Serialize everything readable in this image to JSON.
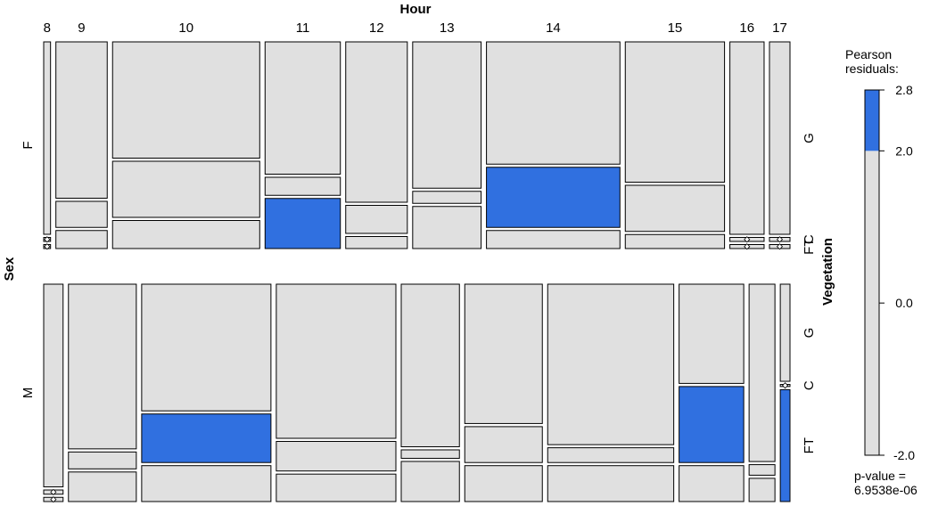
{
  "chart_data": {
    "type": "mosaic",
    "title": "Hour",
    "row_variable": "Sex",
    "column_variable": "Hour",
    "cell_variable": "Vegetation",
    "hours": [
      "8",
      "9",
      "10",
      "11",
      "12",
      "13",
      "14",
      "15",
      "16",
      "17"
    ],
    "sexes": [
      "F",
      "M"
    ],
    "vegetation_levels": [
      "G",
      "C",
      "FT"
    ],
    "vegetation_tick_labels": {
      "F": [
        "G",
        "C",
        "FT"
      ],
      "M": [
        "G",
        "C",
        "FT"
      ]
    },
    "residual_colors": {
      "neutral": "#e0e0e0",
      "positive": "#3070e0",
      "stroke": "#000000"
    },
    "legend": {
      "title_line1": "Pearson",
      "title_line2": "residuals:",
      "ticks": [
        "2.8",
        "2.0",
        "0.0",
        "-2.0"
      ],
      "tick_values": [
        2.8,
        2.0,
        0.0,
        -2.0
      ],
      "range": [
        -2.0,
        2.8
      ],
      "pvalue_line1": "p-value =",
      "pvalue_line2": "6.9538e-06"
    },
    "hour_proportions_F": [
      0.01,
      0.075,
      0.215,
      0.11,
      0.09,
      0.1,
      0.195,
      0.145,
      0.05,
      0.03
    ],
    "hour_proportions_M": [
      0.03,
      0.105,
      0.2,
      0.185,
      0.09,
      0.12,
      0.195,
      0.1,
      0.04,
      0.015
    ],
    "sex_proportions": [
      0.5,
      0.5
    ],
    "cells": {
      "F": [
        {
          "G": 0.96,
          "C": 0.02,
          "FT": 0.02,
          "shaded": null
        },
        {
          "G": 0.78,
          "C": 0.13,
          "FT": 0.09,
          "shaded": null
        },
        {
          "G": 0.58,
          "C": 0.28,
          "FT": 0.14,
          "shaded": null
        },
        {
          "G": 0.66,
          "C": 0.09,
          "FT": 0.25,
          "shaded": "FT"
        },
        {
          "G": 0.8,
          "C": 0.14,
          "FT": 0.06,
          "shaded": null
        },
        {
          "G": 0.73,
          "C": 0.06,
          "FT": 0.21,
          "shaded": null
        },
        {
          "G": 0.61,
          "C": 0.3,
          "FT": 0.09,
          "shaded": "C"
        },
        {
          "G": 0.7,
          "C": 0.23,
          "FT": 0.07,
          "shaded": null
        },
        {
          "G": 0.96,
          "C": 0.02,
          "FT": 0.02,
          "shaded": null
        },
        {
          "G": 0.96,
          "C": 0.02,
          "FT": 0.02,
          "shaded": null
        }
      ],
      "M": [
        {
          "G": 0.96,
          "C": 0.02,
          "FT": 0.02,
          "shaded": null
        },
        {
          "G": 0.78,
          "C": 0.08,
          "FT": 0.14,
          "shaded": null
        },
        {
          "G": 0.6,
          "C": 0.23,
          "FT": 0.17,
          "shaded": "C"
        },
        {
          "G": 0.73,
          "C": 0.14,
          "FT": 0.13,
          "shaded": null
        },
        {
          "G": 0.77,
          "C": 0.04,
          "FT": 0.19,
          "shaded": null
        },
        {
          "G": 0.66,
          "C": 0.17,
          "FT": 0.17,
          "shaded": null
        },
        {
          "G": 0.76,
          "C": 0.07,
          "FT": 0.17,
          "shaded": null
        },
        {
          "G": 0.47,
          "C": 0.36,
          "FT": 0.17,
          "shaded": "C"
        },
        {
          "G": 0.84,
          "C": 0.05,
          "FT": 0.11,
          "shaded": null
        },
        {
          "G": 0.46,
          "C": 0.01,
          "FT": 0.53,
          "shaded": "FT"
        }
      ]
    }
  }
}
